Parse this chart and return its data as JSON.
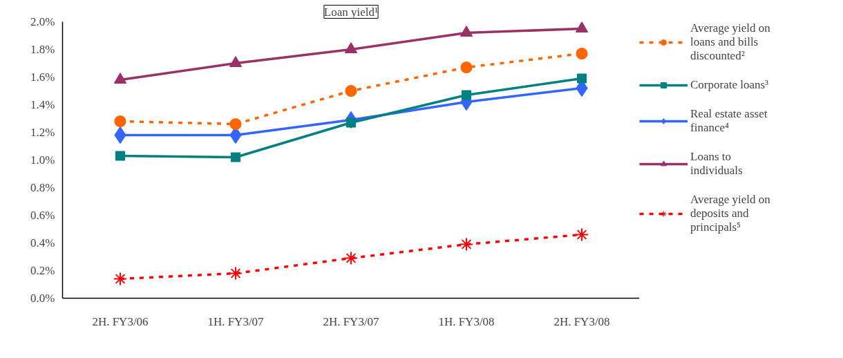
{
  "chart_data": {
    "type": "line",
    "title": "Loan yield¹",
    "categories": [
      "2H. FY3/06",
      "1H. FY3/07",
      "2H. FY3/07",
      "1H. FY3/08",
      "2H. FY3/08"
    ],
    "series": [
      {
        "name": "Average yield on loans and bills discounted²",
        "color": "#ff6600",
        "marker": "circle",
        "line_style": "dashed",
        "values": [
          1.28,
          1.26,
          1.5,
          1.67,
          1.77
        ]
      },
      {
        "name": "Corporate loans³",
        "color": "#008080",
        "marker": "square",
        "line_style": "solid",
        "values": [
          1.03,
          1.02,
          1.27,
          1.47,
          1.59
        ]
      },
      {
        "name": "Real estate asset finance⁴",
        "color": "#3366ff",
        "marker": "diamond",
        "line_style": "solid",
        "values": [
          1.18,
          1.18,
          1.29,
          1.42,
          1.52
        ]
      },
      {
        "name": "Loans to individuals",
        "color": "#993366",
        "marker": "triangle",
        "line_style": "solid",
        "values": [
          1.58,
          1.7,
          1.8,
          1.92,
          1.95
        ]
      },
      {
        "name": "Average yield on deposits and principals⁵",
        "color": "#ff0000",
        "marker": "cross",
        "line_style": "dashed",
        "values": [
          0.14,
          0.18,
          0.29,
          0.39,
          0.46
        ]
      }
    ],
    "ylim": [
      0,
      2.0
    ],
    "yticks": [
      {
        "value": 0,
        "label": "0.0%"
      },
      {
        "value": 0.2,
        "label": "0.2%"
      },
      {
        "value": 0.4,
        "label": "0.4%"
      },
      {
        "value": 0.6,
        "label": "0.6%"
      },
      {
        "value": 0.8,
        "label": "0.8%"
      },
      {
        "value": 1.0,
        "label": "1.0%"
      },
      {
        "value": 1.2,
        "label": "1.2%"
      },
      {
        "value": 1.4,
        "label": "1.4%"
      },
      {
        "value": 1.6,
        "label": "1.6%"
      },
      {
        "value": 1.8,
        "label": "1.8%"
      },
      {
        "value": 2.0,
        "label": "2.0%"
      }
    ],
    "grid": false,
    "legend": "right"
  }
}
